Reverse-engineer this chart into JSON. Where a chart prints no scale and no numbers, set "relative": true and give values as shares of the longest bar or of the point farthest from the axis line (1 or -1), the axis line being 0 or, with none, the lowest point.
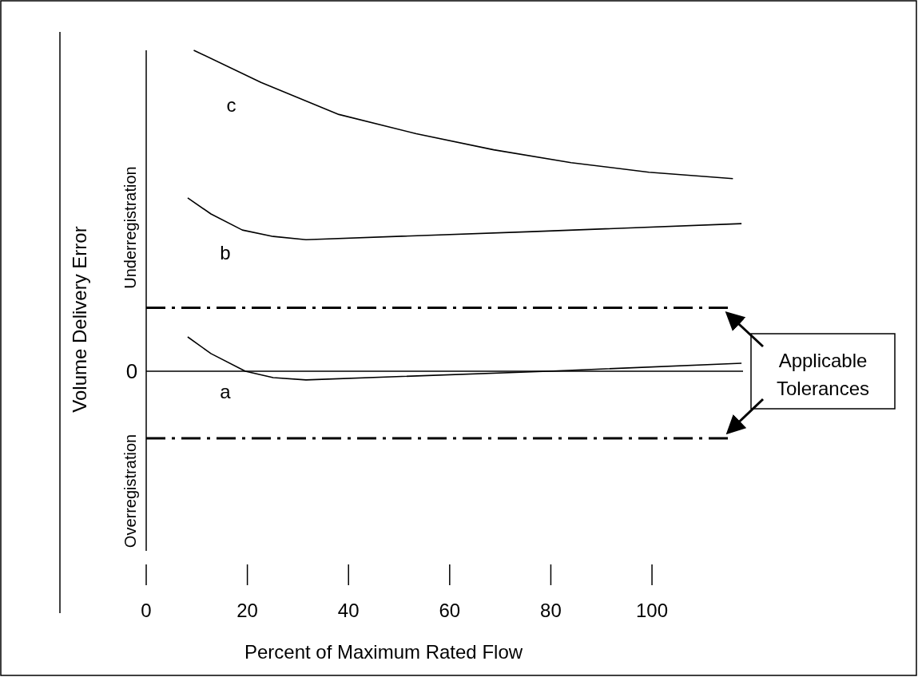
{
  "chart_data": {
    "type": "line",
    "relative": true,
    "xlabel": "Percent of Maximum Rated Flow",
    "ylabel": "Volume Delivery Error",
    "xlim": [
      0,
      118
    ],
    "xticks": [
      0,
      20,
      40,
      60,
      80,
      100
    ],
    "grid": false,
    "legend": false,
    "marker": "none",
    "line_style": "solid",
    "series": [
      {
        "name": "c",
        "color": "#000000",
        "x": [
          9.4,
          22.7,
          38.1,
          53.4,
          68.7,
          84,
          99.4,
          116
        ],
        "values": [
          1,
          0.9,
          0.8,
          0.74,
          0.69,
          0.65,
          0.62,
          0.6
        ]
      },
      {
        "name": "b",
        "color": "#000000",
        "x": [
          8.2,
          12.8,
          19,
          25.1,
          31.6,
          76.3,
          117.7
        ],
        "values": [
          0.54,
          0.49,
          0.44,
          0.42,
          0.41,
          0.435,
          0.46
        ]
      },
      {
        "name": "a",
        "color": "#000000",
        "x": [
          8.2,
          12.8,
          19.6,
          25.1,
          31.6,
          79.5,
          117.7
        ],
        "values": [
          0.107,
          0.055,
          0,
          -0.02,
          -0.027,
          0,
          0.025
        ]
      }
    ],
    "ref_lines": [
      {
        "axis": "y",
        "value": 0,
        "label": "0",
        "color": "#000000",
        "line_style": "solid"
      },
      {
        "axis": "y",
        "value": 0.198,
        "color": "#000000",
        "line_style": "dashdot"
      },
      {
        "axis": "y",
        "value": -0.209,
        "color": "#000000",
        "line_style": "dashdot"
      }
    ],
    "annotations": [
      "Underregistration",
      "Overregistration",
      "Applicable Tolerances"
    ]
  }
}
